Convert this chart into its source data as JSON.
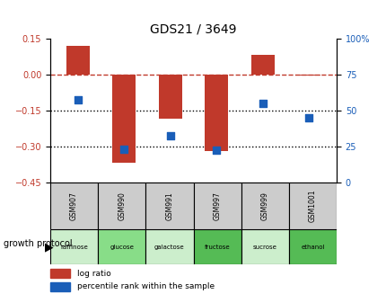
{
  "title": "GDS21 / 3649",
  "samples": [
    "GSM907",
    "GSM990",
    "GSM991",
    "GSM997",
    "GSM999",
    "GSM1001"
  ],
  "protocols": [
    "raffinose",
    "glucose",
    "galactose",
    "fructose",
    "sucrose",
    "ethanol"
  ],
  "log_ratio": [
    0.12,
    -0.37,
    -0.185,
    -0.32,
    0.08,
    -0.005
  ],
  "percentile_rank": [
    57,
    23,
    32,
    22,
    55,
    45
  ],
  "bar_color": "#c0392b",
  "dot_color": "#1a5eb8",
  "bg_plot": "#ffffff",
  "bg_gsm": "#cccccc",
  "bg_protocol_light": "#ccffcc",
  "bg_protocol_dark": "#99ee99",
  "ylim_left": [
    -0.45,
    0.15
  ],
  "ylim_right": [
    0,
    100
  ],
  "yticks_left": [
    0.15,
    0.0,
    -0.15,
    -0.3,
    -0.45
  ],
  "yticks_right": [
    100,
    75,
    50,
    25,
    0
  ],
  "hline_dashed": 0.0,
  "hline_dotted": [
    -0.15,
    -0.3
  ],
  "legend_items": [
    "log ratio",
    "percentile rank within the sample"
  ]
}
